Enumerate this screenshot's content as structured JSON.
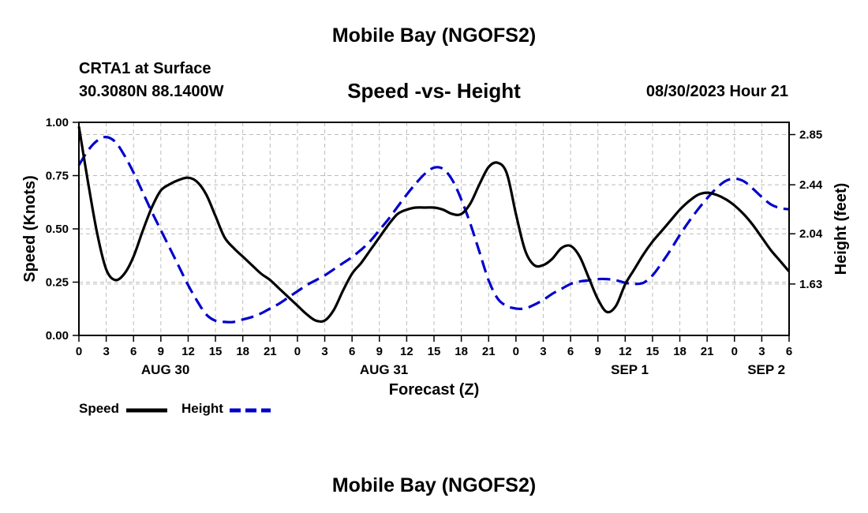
{
  "header": {
    "title": "Mobile Bay (NGOFS2)",
    "station": "CRTA1 at Surface",
    "coords": "30.3080N  88.1400W",
    "subtitle": "Speed -vs- Height",
    "datetime": "08/30/2023 Hour 21"
  },
  "footer": {
    "title": "Mobile Bay (NGOFS2)"
  },
  "legend": {
    "speed_label": "Speed",
    "height_label": "Height"
  },
  "colors": {
    "speed": "#000000",
    "height": "#0000cc",
    "grid": "#bbbbbb"
  },
  "chart_data": {
    "type": "line",
    "title": "Speed -vs- Height",
    "xlabel": "Forecast (Z)",
    "ylabel": "Speed (Knots)",
    "y2label": "Height (feet)",
    "xlim": [
      0,
      78
    ],
    "ylim": [
      0,
      1.0
    ],
    "y2lim": [
      1.21,
      2.95
    ],
    "grid": true,
    "x_ticks": [
      0,
      3,
      6,
      9,
      12,
      15,
      18,
      21,
      24,
      27,
      30,
      33,
      36,
      39,
      42,
      45,
      48,
      51,
      54,
      57,
      60,
      63,
      66,
      69,
      72,
      75,
      78
    ],
    "x_tick_labels": [
      "0",
      "3",
      "6",
      "9",
      "12",
      "15",
      "18",
      "21",
      "0",
      "3",
      "6",
      "9",
      "12",
      "15",
      "18",
      "21",
      "0",
      "3",
      "6",
      "9",
      "12",
      "15",
      "18",
      "21",
      "0",
      "3",
      "6"
    ],
    "date_labels": [
      {
        "x": 9.5,
        "label": "AUG 30"
      },
      {
        "x": 33.5,
        "label": "AUG 31"
      },
      {
        "x": 60.5,
        "label": "SEP 1"
      },
      {
        "x": 75.5,
        "label": "SEP 2"
      }
    ],
    "y_ticks": [
      0.0,
      0.25,
      0.5,
      0.75,
      1.0
    ],
    "y_tick_labels": [
      "0.00",
      "0.25",
      "0.50",
      "0.75",
      "1.00"
    ],
    "y2_ticks": [
      1.63,
      2.04,
      2.44,
      2.85
    ],
    "y2_tick_labels": [
      "1.63",
      "2.04",
      "2.44",
      "2.85"
    ],
    "series": [
      {
        "name": "Speed",
        "axis": "left",
        "style": "solid",
        "points": [
          [
            0,
            0.98
          ],
          [
            1,
            0.72
          ],
          [
            2,
            0.48
          ],
          [
            3,
            0.31
          ],
          [
            4,
            0.26
          ],
          [
            5,
            0.29
          ],
          [
            6,
            0.37
          ],
          [
            7,
            0.49
          ],
          [
            8,
            0.6
          ],
          [
            9,
            0.68
          ],
          [
            10,
            0.71
          ],
          [
            11,
            0.73
          ],
          [
            12,
            0.74
          ],
          [
            13,
            0.72
          ],
          [
            14,
            0.66
          ],
          [
            15,
            0.56
          ],
          [
            16,
            0.46
          ],
          [
            17,
            0.41
          ],
          [
            18,
            0.37
          ],
          [
            19,
            0.33
          ],
          [
            20,
            0.29
          ],
          [
            21,
            0.26
          ],
          [
            22,
            0.22
          ],
          [
            23,
            0.18
          ],
          [
            24,
            0.14
          ],
          [
            25,
            0.1
          ],
          [
            26,
            0.07
          ],
          [
            27,
            0.07
          ],
          [
            28,
            0.12
          ],
          [
            29,
            0.21
          ],
          [
            30,
            0.29
          ],
          [
            31,
            0.34
          ],
          [
            32,
            0.4
          ],
          [
            33,
            0.46
          ],
          [
            34,
            0.52
          ],
          [
            35,
            0.57
          ],
          [
            36,
            0.59
          ],
          [
            37,
            0.6
          ],
          [
            38,
            0.6
          ],
          [
            39,
            0.6
          ],
          [
            40,
            0.59
          ],
          [
            41,
            0.57
          ],
          [
            42,
            0.57
          ],
          [
            43,
            0.62
          ],
          [
            44,
            0.71
          ],
          [
            45,
            0.79
          ],
          [
            46,
            0.81
          ],
          [
            47,
            0.76
          ],
          [
            48,
            0.57
          ],
          [
            49,
            0.4
          ],
          [
            50,
            0.33
          ],
          [
            51,
            0.33
          ],
          [
            52,
            0.36
          ],
          [
            53,
            0.41
          ],
          [
            54,
            0.42
          ],
          [
            55,
            0.37
          ],
          [
            56,
            0.27
          ],
          [
            57,
            0.17
          ],
          [
            58,
            0.11
          ],
          [
            59,
            0.14
          ],
          [
            60,
            0.24
          ],
          [
            61,
            0.31
          ],
          [
            62,
            0.38
          ],
          [
            63,
            0.44
          ],
          [
            64,
            0.49
          ],
          [
            65,
            0.54
          ],
          [
            66,
            0.59
          ],
          [
            67,
            0.63
          ],
          [
            68,
            0.66
          ],
          [
            69,
            0.67
          ],
          [
            70,
            0.66
          ],
          [
            71,
            0.64
          ],
          [
            72,
            0.61
          ],
          [
            73,
            0.57
          ],
          [
            74,
            0.52
          ],
          [
            75,
            0.46
          ],
          [
            76,
            0.4
          ],
          [
            77,
            0.35
          ],
          [
            78,
            0.3
          ]
        ]
      },
      {
        "name": "Height",
        "axis": "right",
        "style": "dashed",
        "points": [
          [
            0,
            2.6
          ],
          [
            1,
            2.72
          ],
          [
            2,
            2.8
          ],
          [
            3,
            2.83
          ],
          [
            4,
            2.79
          ],
          [
            5,
            2.68
          ],
          [
            6,
            2.54
          ],
          [
            7,
            2.38
          ],
          [
            8,
            2.22
          ],
          [
            9,
            2.07
          ],
          [
            10,
            1.92
          ],
          [
            11,
            1.77
          ],
          [
            12,
            1.62
          ],
          [
            13,
            1.49
          ],
          [
            14,
            1.38
          ],
          [
            15,
            1.33
          ],
          [
            16,
            1.32
          ],
          [
            17,
            1.32
          ],
          [
            18,
            1.34
          ],
          [
            19,
            1.36
          ],
          [
            20,
            1.39
          ],
          [
            21,
            1.43
          ],
          [
            22,
            1.47
          ],
          [
            23,
            1.52
          ],
          [
            24,
            1.57
          ],
          [
            25,
            1.62
          ],
          [
            26,
            1.66
          ],
          [
            27,
            1.7
          ],
          [
            28,
            1.75
          ],
          [
            29,
            1.8
          ],
          [
            30,
            1.85
          ],
          [
            31,
            1.91
          ],
          [
            32,
            1.98
          ],
          [
            33,
            2.07
          ],
          [
            34,
            2.16
          ],
          [
            35,
            2.26
          ],
          [
            36,
            2.36
          ],
          [
            37,
            2.45
          ],
          [
            38,
            2.53
          ],
          [
            39,
            2.58
          ],
          [
            40,
            2.57
          ],
          [
            41,
            2.48
          ],
          [
            42,
            2.32
          ],
          [
            43,
            2.12
          ],
          [
            44,
            1.89
          ],
          [
            45,
            1.66
          ],
          [
            46,
            1.51
          ],
          [
            47,
            1.45
          ],
          [
            48,
            1.43
          ],
          [
            49,
            1.43
          ],
          [
            50,
            1.46
          ],
          [
            51,
            1.5
          ],
          [
            52,
            1.55
          ],
          [
            53,
            1.59
          ],
          [
            54,
            1.63
          ],
          [
            55,
            1.65
          ],
          [
            56,
            1.66
          ],
          [
            57,
            1.67
          ],
          [
            58,
            1.67
          ],
          [
            59,
            1.66
          ],
          [
            60,
            1.64
          ],
          [
            61,
            1.63
          ],
          [
            62,
            1.64
          ],
          [
            63,
            1.7
          ],
          [
            64,
            1.8
          ],
          [
            65,
            1.91
          ],
          [
            66,
            2.03
          ],
          [
            67,
            2.14
          ],
          [
            68,
            2.24
          ],
          [
            69,
            2.33
          ],
          [
            70,
            2.41
          ],
          [
            71,
            2.47
          ],
          [
            72,
            2.49
          ],
          [
            73,
            2.47
          ],
          [
            74,
            2.41
          ],
          [
            75,
            2.34
          ],
          [
            76,
            2.28
          ],
          [
            77,
            2.25
          ],
          [
            78,
            2.24
          ]
        ]
      }
    ]
  }
}
